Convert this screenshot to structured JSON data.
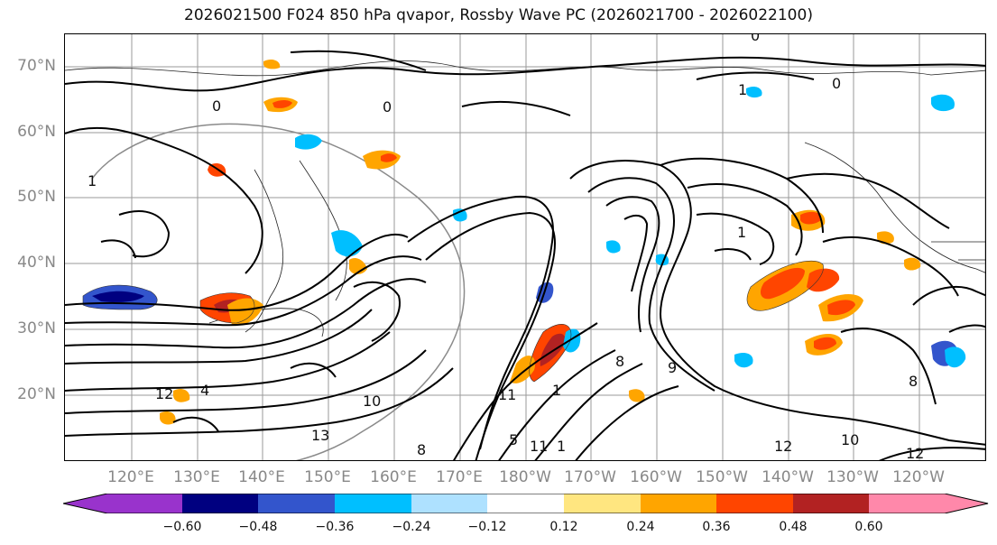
{
  "title": "2026021500 F024 850 hPa qvapor, Rossby Wave PC (2026021700 - 2026022100)",
  "axes": {
    "lat_labels": [
      "70°N",
      "60°N",
      "50°N",
      "40°N",
      "30°N",
      "20°N"
    ],
    "lon_labels": [
      "120°E",
      "130°E",
      "140°E",
      "150°E",
      "160°E",
      "170°E",
      "180°W",
      "170°W",
      "160°W",
      "150°W",
      "140°W",
      "130°W",
      "120°W"
    ]
  },
  "contour_labels": [
    "0",
    "0",
    "0",
    "0",
    "1",
    "1",
    "1",
    "1",
    "10",
    "10",
    "11",
    "11",
    "12",
    "12",
    "12",
    "13",
    "1",
    "9",
    "8",
    "8",
    "5",
    "4",
    "8"
  ],
  "colorbar": {
    "colors": [
      "#9933cc",
      "#000080",
      "#3355cc",
      "#00bfff",
      "#aee1ff",
      "#ffffff",
      "#ffe680",
      "#ffa500",
      "#ff4500",
      "#b22222",
      "#ff88aa"
    ],
    "tick_labels": [
      "−0.60",
      "−0.48",
      "−0.36",
      "−0.24",
      "−0.12",
      "0.12",
      "0.24",
      "0.36",
      "0.48",
      "0.60"
    ]
  },
  "legend": {
    "levels": [
      -0.6,
      -0.48,
      -0.36,
      -0.24,
      -0.12,
      0.12,
      0.24,
      0.36,
      0.48,
      0.6
    ]
  }
}
